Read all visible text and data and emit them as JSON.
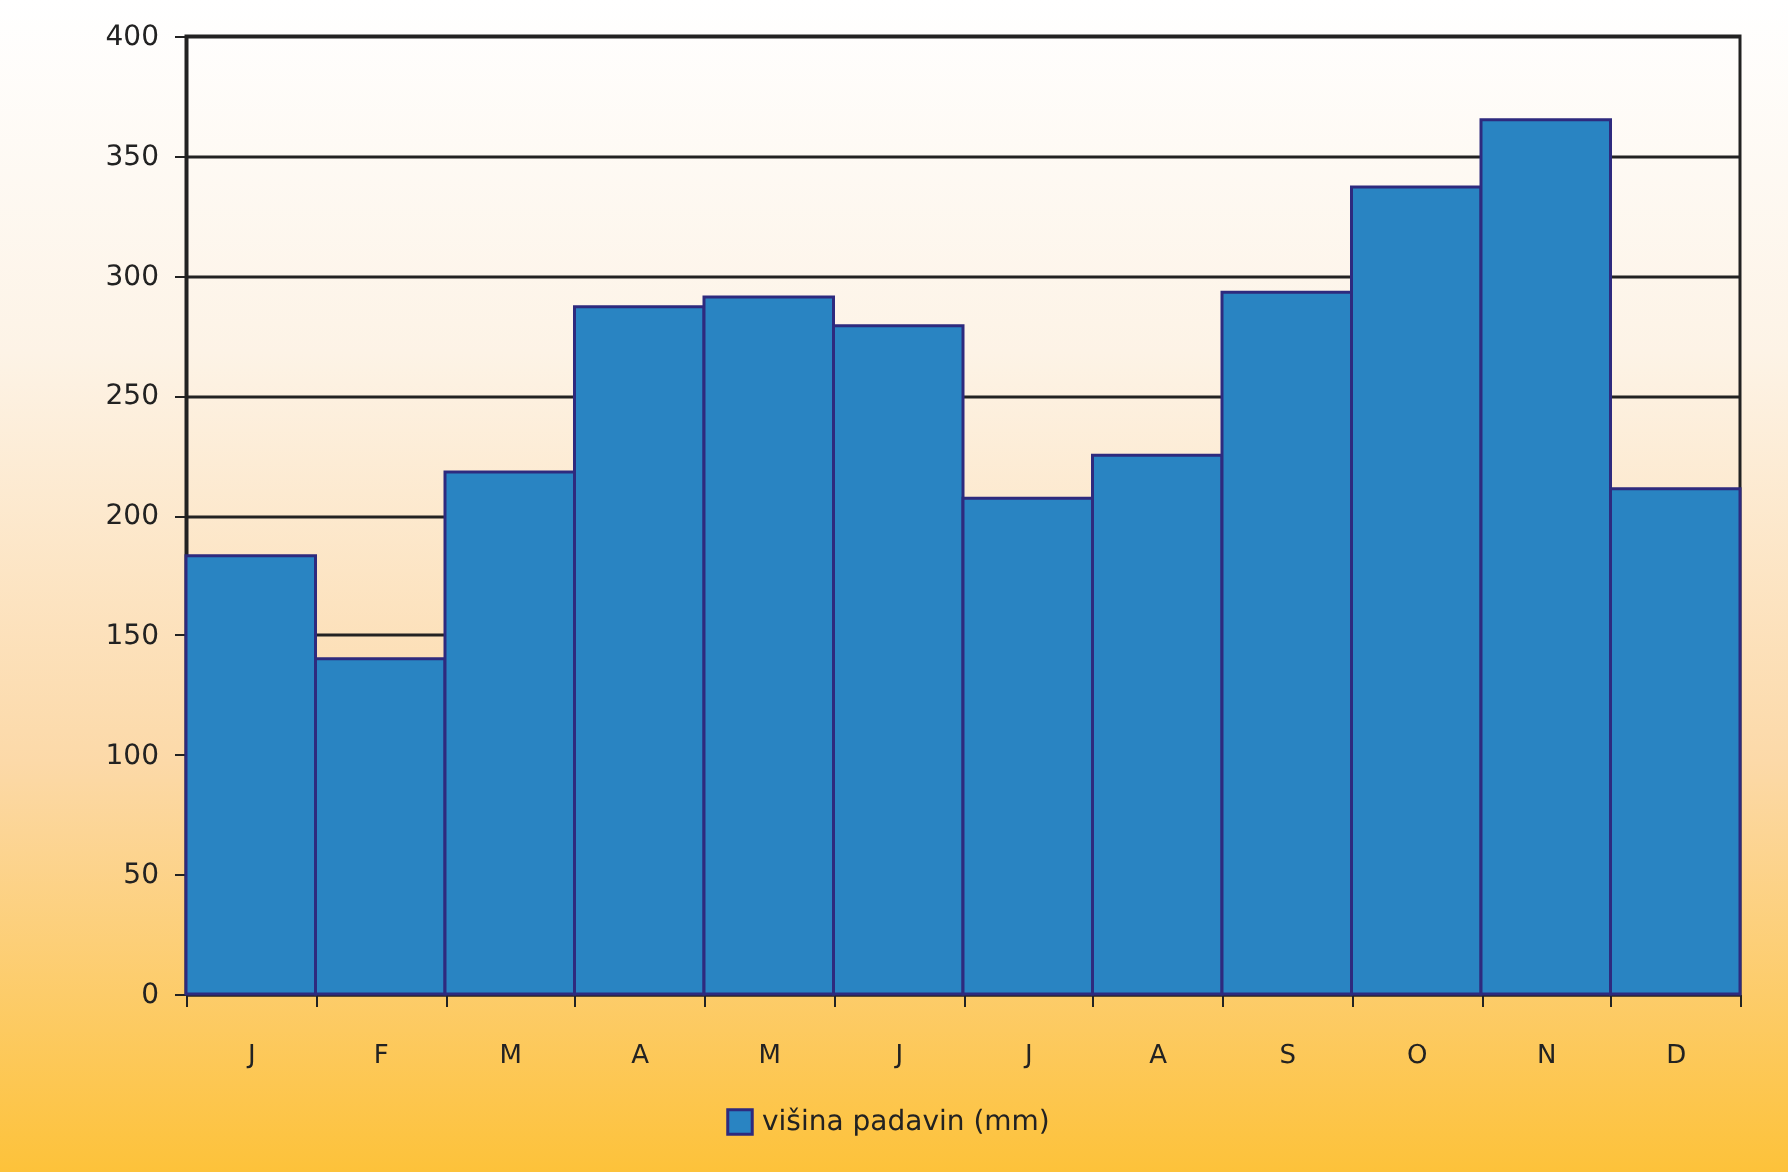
{
  "chart_data": {
    "type": "bar",
    "categories": [
      "J",
      "F",
      "M",
      "A",
      "M",
      "J",
      "J",
      "A",
      "S",
      "O",
      "N",
      "D"
    ],
    "series": [
      {
        "name": "višina padavin (mm)",
        "color": "#2984c2",
        "values": [
          183,
          140,
          218,
          287,
          291,
          279,
          207,
          225,
          293,
          337,
          365,
          211
        ]
      }
    ],
    "ylim": [
      0,
      400
    ],
    "yticks": [
      0,
      50,
      100,
      150,
      200,
      250,
      300,
      350,
      400
    ],
    "grid": "y",
    "legend": "bottom"
  }
}
